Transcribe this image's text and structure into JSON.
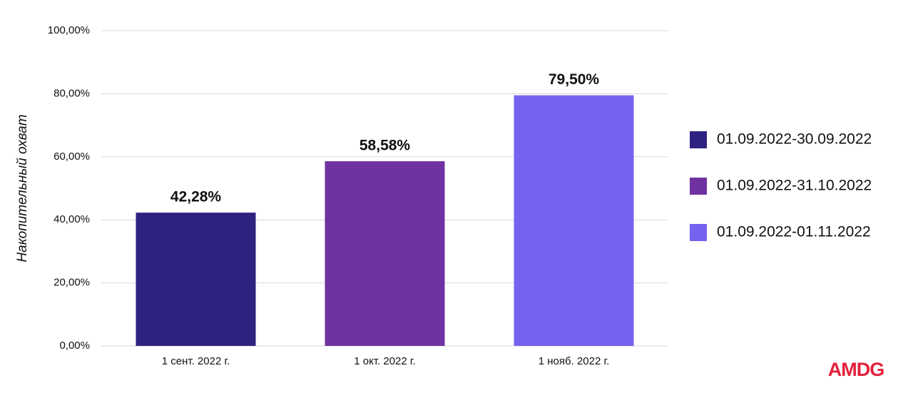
{
  "chart_data": {
    "type": "bar",
    "y_label": "Накопительный охват",
    "categories": [
      "1 сент. 2022 г.",
      "1 окт. 2022 г.",
      "1 нояб. 2022 г."
    ],
    "series": [
      {
        "name": "01.09.2022-30.09.2022",
        "color": "#2e2280",
        "values": [
          42.28,
          null,
          null
        ],
        "value_labels": [
          "42,28%",
          null,
          null
        ]
      },
      {
        "name": "01.09.2022-31.10.2022",
        "color": "#6f32a0",
        "values": [
          null,
          58.58,
          null
        ],
        "value_labels": [
          null,
          "58,58%",
          null
        ]
      },
      {
        "name": "01.09.2022-01.11.2022",
        "color": "#7563f0",
        "values": [
          null,
          null,
          79.5
        ],
        "value_labels": [
          null,
          null,
          "79,50%"
        ]
      }
    ],
    "ylim": [
      0,
      100
    ],
    "yticks": [
      {
        "value": 0,
        "label": "0,00%"
      },
      {
        "value": 20,
        "label": "20,00%"
      },
      {
        "value": 40,
        "label": "40,00%"
      },
      {
        "value": 60,
        "label": "60,00%"
      },
      {
        "value": 80,
        "label": "80,00%"
      },
      {
        "value": 100,
        "label": "100,00%"
      }
    ],
    "grid": true,
    "legend": "right"
  },
  "logo": "AMDG"
}
